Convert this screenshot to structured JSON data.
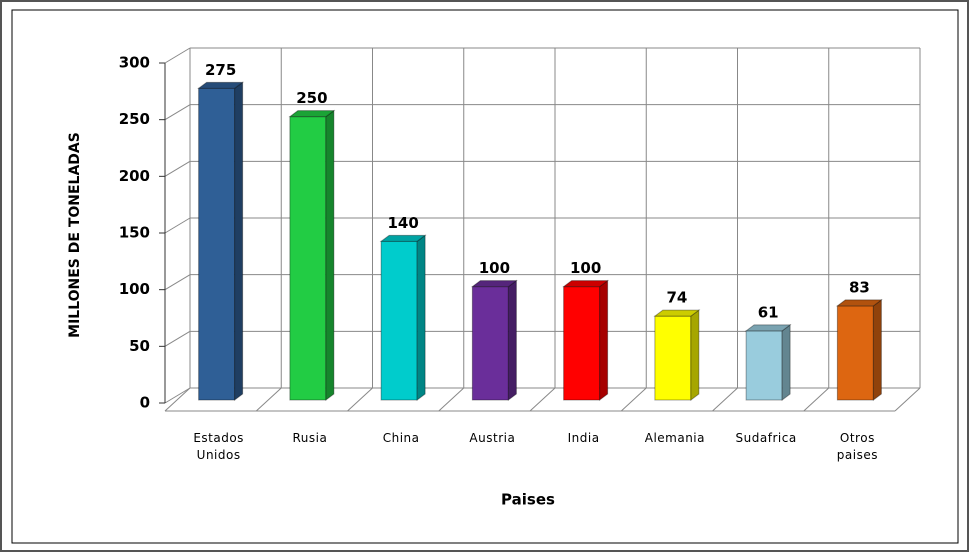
{
  "chart_data": {
    "type": "bar",
    "categories": [
      "Estados Unidos",
      "Rusia",
      "China",
      "Austria",
      "India",
      "Alemania",
      "Sudafrica",
      "Otros paises"
    ],
    "values": [
      275,
      250,
      140,
      100,
      100,
      74,
      61,
      83
    ],
    "colors": [
      "#2f5f96",
      "#22cc44",
      "#00cccc",
      "#6a2e9a",
      "#ff0000",
      "#ffff00",
      "#99ccdd",
      "#dd6611"
    ],
    "x_label": "Paises",
    "y_label": "MILLONES DE TONELADAS",
    "ylim": [
      0,
      300
    ],
    "yticks": [
      0,
      50,
      100,
      150,
      200,
      250,
      300
    ],
    "grid": true
  }
}
